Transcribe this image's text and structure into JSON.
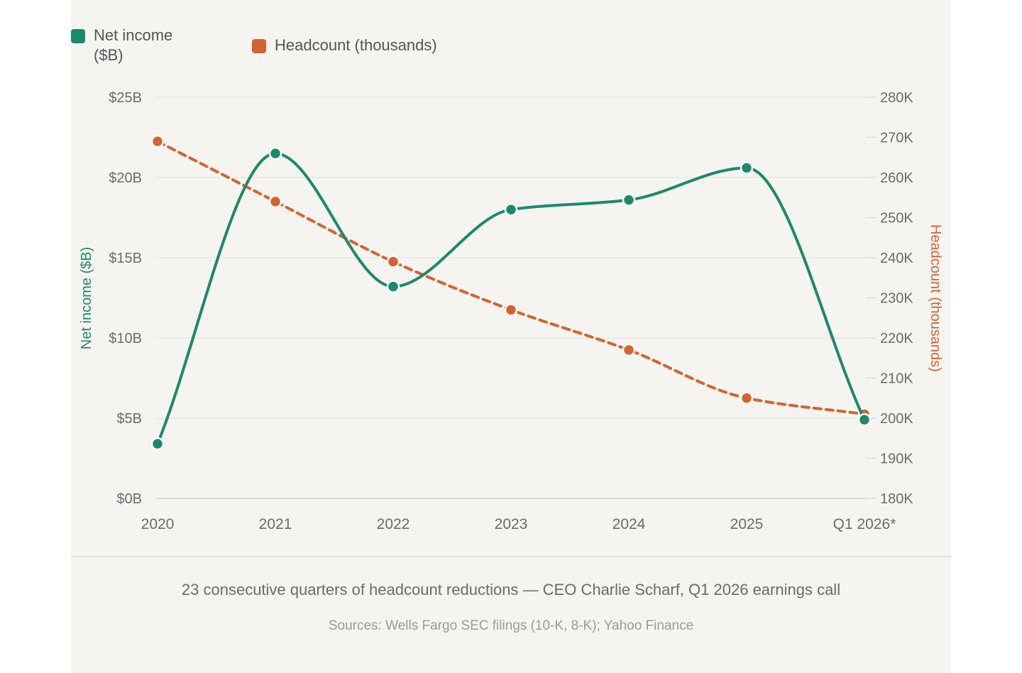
{
  "chart_data": {
    "type": "line",
    "categories": [
      "2020",
      "2021",
      "2022",
      "2023",
      "2024",
      "2025",
      "Q1 2026*"
    ],
    "series": [
      {
        "name": "Net income ($B)",
        "axis": "left",
        "color": "#1a8a6c",
        "style": "solid",
        "values": [
          3.4,
          21.5,
          13.2,
          18.0,
          18.6,
          20.6,
          4.9
        ]
      },
      {
        "name": "Headcount (thousands)",
        "axis": "right",
        "color": "#d4632e",
        "style": "dashed",
        "values": [
          269,
          254,
          239,
          227,
          217,
          205,
          201
        ]
      }
    ],
    "left_axis": {
      "label": "Net income ($B)",
      "ticks": [
        "$0B",
        "$5B",
        "$10B",
        "$15B",
        "$20B",
        "$25B"
      ],
      "range": [
        0,
        25
      ]
    },
    "right_axis": {
      "label": "Headcount (thousands)",
      "ticks": [
        "180K",
        "190K",
        "200K",
        "210K",
        "220K",
        "230K",
        "240K",
        "250K",
        "260K",
        "270K",
        "280K"
      ],
      "range": [
        180,
        280
      ]
    },
    "grid": true,
    "legend_position": "top-left"
  },
  "legend": {
    "net_income": "Net income ($B)",
    "headcount": "Headcount (thousands)"
  },
  "caption": "23 consecutive quarters of headcount reductions — CEO Charlie Scharf, Q1 2026 earnings call",
  "sources": "Sources: Wells Fargo SEC filings (10-K, 8-K); Yahoo Finance"
}
